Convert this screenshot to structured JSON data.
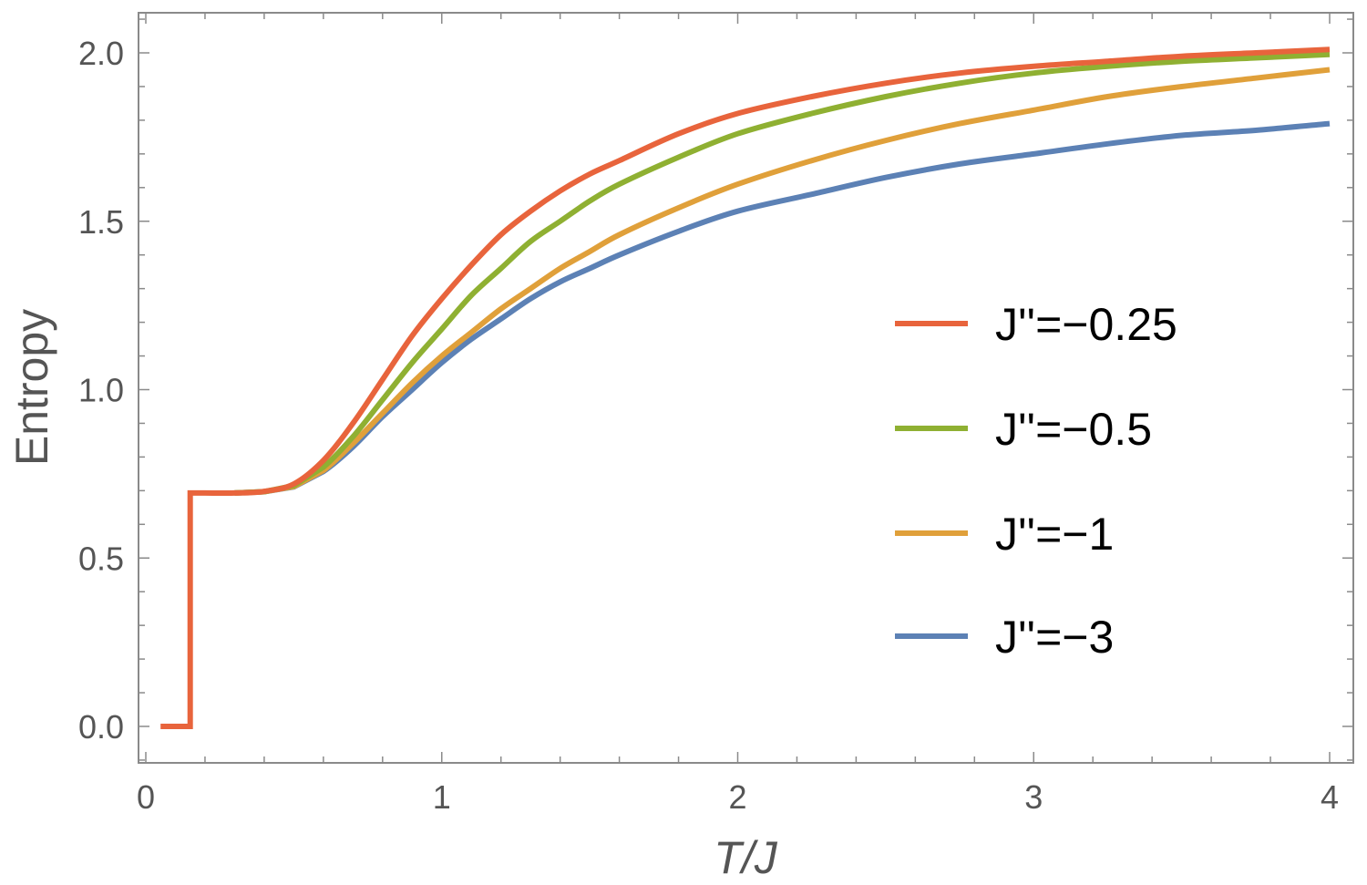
{
  "chart_data": {
    "type": "line",
    "xlabel": "T/J",
    "ylabel": "Entropy",
    "xlim": [
      0,
      4
    ],
    "ylim": [
      -0.1,
      2.12
    ],
    "xticks": [
      0,
      1,
      2,
      3,
      4
    ],
    "xtick_labels": [
      "0",
      "1",
      "2",
      "3",
      "4"
    ],
    "yticks": [
      0.0,
      0.5,
      1.0,
      1.5,
      2.0
    ],
    "ytick_labels": [
      "0.0",
      "0.5",
      "1.0",
      "1.5",
      "2.0"
    ],
    "grid": false,
    "legend_position": "right",
    "series": [
      {
        "name": "J''=−0.25",
        "color": "#e8643c",
        "x": [
          0.05,
          0.15,
          0.15,
          0.2,
          0.3,
          0.4,
          0.5,
          0.6,
          0.7,
          0.8,
          0.9,
          1.0,
          1.1,
          1.2,
          1.3,
          1.4,
          1.5,
          1.6,
          1.8,
          2.0,
          2.25,
          2.5,
          2.75,
          3.0,
          3.25,
          3.5,
          3.75,
          4.0
        ],
        "y": [
          0.0,
          0.0,
          0.693,
          0.693,
          0.693,
          0.698,
          0.72,
          0.79,
          0.9,
          1.03,
          1.16,
          1.27,
          1.37,
          1.46,
          1.53,
          1.59,
          1.64,
          1.68,
          1.76,
          1.82,
          1.87,
          1.91,
          1.94,
          1.96,
          1.975,
          1.99,
          2.0,
          2.01
        ]
      },
      {
        "name": "J''=−0.5",
        "color": "#8fb032",
        "x": [
          0.3,
          0.4,
          0.5,
          0.6,
          0.7,
          0.8,
          0.9,
          1.0,
          1.1,
          1.2,
          1.3,
          1.4,
          1.5,
          1.6,
          1.8,
          2.0,
          2.25,
          2.5,
          2.75,
          3.0,
          3.25,
          3.5,
          3.75,
          4.0
        ],
        "y": [
          0.693,
          0.697,
          0.715,
          0.77,
          0.86,
          0.97,
          1.08,
          1.18,
          1.28,
          1.36,
          1.44,
          1.5,
          1.56,
          1.61,
          1.69,
          1.76,
          1.82,
          1.87,
          1.91,
          1.94,
          1.96,
          1.975,
          1.985,
          1.995
        ]
      },
      {
        "name": "J''=−1",
        "color": "#e0a03a",
        "x": [
          0.3,
          0.4,
          0.5,
          0.6,
          0.7,
          0.8,
          0.9,
          1.0,
          1.1,
          1.2,
          1.3,
          1.4,
          1.5,
          1.6,
          1.8,
          2.0,
          2.25,
          2.5,
          2.75,
          3.0,
          3.25,
          3.5,
          3.75,
          4.0
        ],
        "y": [
          0.693,
          0.697,
          0.712,
          0.76,
          0.84,
          0.93,
          1.02,
          1.1,
          1.17,
          1.24,
          1.3,
          1.36,
          1.41,
          1.46,
          1.54,
          1.61,
          1.68,
          1.74,
          1.79,
          1.83,
          1.87,
          1.9,
          1.925,
          1.95
        ]
      },
      {
        "name": "J''=−3",
        "color": "#5c81b5",
        "x": [
          0.3,
          0.4,
          0.5,
          0.6,
          0.7,
          0.8,
          0.9,
          1.0,
          1.1,
          1.2,
          1.3,
          1.4,
          1.5,
          1.6,
          1.8,
          2.0,
          2.25,
          2.5,
          2.75,
          3.0,
          3.25,
          3.5,
          3.75,
          4.0
        ],
        "y": [
          0.693,
          0.697,
          0.711,
          0.757,
          0.83,
          0.92,
          1.0,
          1.08,
          1.15,
          1.21,
          1.27,
          1.32,
          1.36,
          1.4,
          1.47,
          1.53,
          1.58,
          1.63,
          1.67,
          1.7,
          1.73,
          1.755,
          1.77,
          1.79
        ]
      }
    ]
  }
}
